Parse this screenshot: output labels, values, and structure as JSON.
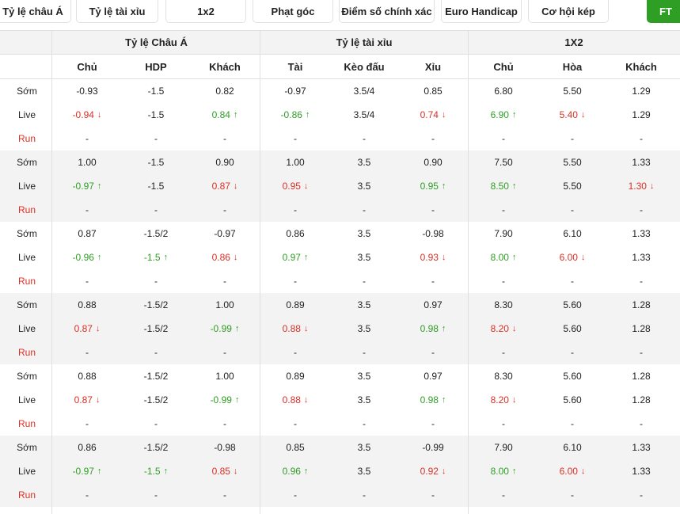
{
  "tabs": [
    {
      "label": "Tỷ lệ châu Á"
    },
    {
      "label": "Tỷ lệ tài xỉu"
    },
    {
      "label": "1x2"
    },
    {
      "label": "Phạt góc"
    },
    {
      "label": "Điểm số chính xác"
    },
    {
      "label": "Euro Handicap"
    },
    {
      "label": "Cơ hội kép"
    },
    {
      "label": "FT"
    }
  ],
  "groups_header": [
    "Tỷ lệ Châu Á",
    "Tỷ lệ tài xỉu",
    "1X2"
  ],
  "columns": [
    "Chủ",
    "HDP",
    "Khách",
    "Tài",
    "Kèo đấu",
    "Xỉu",
    "Chủ",
    "Hòa",
    "Khách"
  ],
  "row_labels": {
    "early": "Sớm",
    "live": "Live",
    "run": "Run"
  },
  "colors": {
    "up": "#2f9e25",
    "down": "#d93025",
    "accent": "#2f9e25"
  },
  "bookmakers": [
    {
      "early": [
        "-0.93",
        "-1.5",
        "0.82",
        "-0.97",
        "3.5/4",
        "0.85",
        "6.80",
        "5.50",
        "1.29"
      ],
      "live": [
        {
          "v": "-0.94",
          "d": "down"
        },
        {
          "v": "-1.5",
          "d": ""
        },
        {
          "v": "0.84",
          "d": "up"
        },
        {
          "v": "-0.86",
          "d": "up"
        },
        {
          "v": "3.5/4",
          "d": ""
        },
        {
          "v": "0.74",
          "d": "down"
        },
        {
          "v": "6.90",
          "d": "up"
        },
        {
          "v": "5.40",
          "d": "down"
        },
        {
          "v": "1.29",
          "d": ""
        }
      ],
      "run": [
        "-",
        "-",
        "-",
        "-",
        "-",
        "-",
        "-",
        "-",
        "-"
      ]
    },
    {
      "early": [
        "1.00",
        "-1.5",
        "0.90",
        "1.00",
        "3.5",
        "0.90",
        "7.50",
        "5.50",
        "1.33"
      ],
      "live": [
        {
          "v": "-0.97",
          "d": "up"
        },
        {
          "v": "-1.5",
          "d": ""
        },
        {
          "v": "0.87",
          "d": "down"
        },
        {
          "v": "0.95",
          "d": "down"
        },
        {
          "v": "3.5",
          "d": ""
        },
        {
          "v": "0.95",
          "d": "up"
        },
        {
          "v": "8.50",
          "d": "up"
        },
        {
          "v": "5.50",
          "d": ""
        },
        {
          "v": "1.30",
          "d": "down"
        }
      ],
      "run": [
        "-",
        "-",
        "-",
        "-",
        "-",
        "-",
        "-",
        "-",
        "-"
      ]
    },
    {
      "early": [
        "0.87",
        "-1.5/2",
        "-0.97",
        "0.86",
        "3.5",
        "-0.98",
        "7.90",
        "6.10",
        "1.33"
      ],
      "live": [
        {
          "v": "-0.96",
          "d": "up"
        },
        {
          "v": "-1.5",
          "d": "up"
        },
        {
          "v": "0.86",
          "d": "down"
        },
        {
          "v": "0.97",
          "d": "up"
        },
        {
          "v": "3.5",
          "d": ""
        },
        {
          "v": "0.93",
          "d": "down"
        },
        {
          "v": "8.00",
          "d": "up"
        },
        {
          "v": "6.00",
          "d": "down"
        },
        {
          "v": "1.33",
          "d": ""
        }
      ],
      "run": [
        "-",
        "-",
        "-",
        "-",
        "-",
        "-",
        "-",
        "-",
        "-"
      ]
    },
    {
      "early": [
        "0.88",
        "-1.5/2",
        "1.00",
        "0.89",
        "3.5",
        "0.97",
        "8.30",
        "5.60",
        "1.28"
      ],
      "live": [
        {
          "v": "0.87",
          "d": "down"
        },
        {
          "v": "-1.5/2",
          "d": ""
        },
        {
          "v": "-0.99",
          "d": "up"
        },
        {
          "v": "0.88",
          "d": "down"
        },
        {
          "v": "3.5",
          "d": ""
        },
        {
          "v": "0.98",
          "d": "up"
        },
        {
          "v": "8.20",
          "d": "down"
        },
        {
          "v": "5.60",
          "d": ""
        },
        {
          "v": "1.28",
          "d": ""
        }
      ],
      "run": [
        "-",
        "-",
        "-",
        "-",
        "-",
        "-",
        "-",
        "-",
        "-"
      ]
    },
    {
      "early": [
        "0.88",
        "-1.5/2",
        "1.00",
        "0.89",
        "3.5",
        "0.97",
        "8.30",
        "5.60",
        "1.28"
      ],
      "live": [
        {
          "v": "0.87",
          "d": "down"
        },
        {
          "v": "-1.5/2",
          "d": ""
        },
        {
          "v": "-0.99",
          "d": "up"
        },
        {
          "v": "0.88",
          "d": "down"
        },
        {
          "v": "3.5",
          "d": ""
        },
        {
          "v": "0.98",
          "d": "up"
        },
        {
          "v": "8.20",
          "d": "down"
        },
        {
          "v": "5.60",
          "d": ""
        },
        {
          "v": "1.28",
          "d": ""
        }
      ],
      "run": [
        "-",
        "-",
        "-",
        "-",
        "-",
        "-",
        "-",
        "-",
        "-"
      ]
    },
    {
      "early": [
        "0.86",
        "-1.5/2",
        "-0.98",
        "0.85",
        "3.5",
        "-0.99",
        "7.90",
        "6.10",
        "1.33"
      ],
      "live": [
        {
          "v": "-0.97",
          "d": "up"
        },
        {
          "v": "-1.5",
          "d": "up"
        },
        {
          "v": "0.85",
          "d": "down"
        },
        {
          "v": "0.96",
          "d": "up"
        },
        {
          "v": "3.5",
          "d": ""
        },
        {
          "v": "0.92",
          "d": "down"
        },
        {
          "v": "8.00",
          "d": "up"
        },
        {
          "v": "6.00",
          "d": "down"
        },
        {
          "v": "1.33",
          "d": ""
        }
      ],
      "run": [
        "-",
        "-",
        "-",
        "-",
        "-",
        "-",
        "-",
        "-",
        "-"
      ]
    }
  ]
}
